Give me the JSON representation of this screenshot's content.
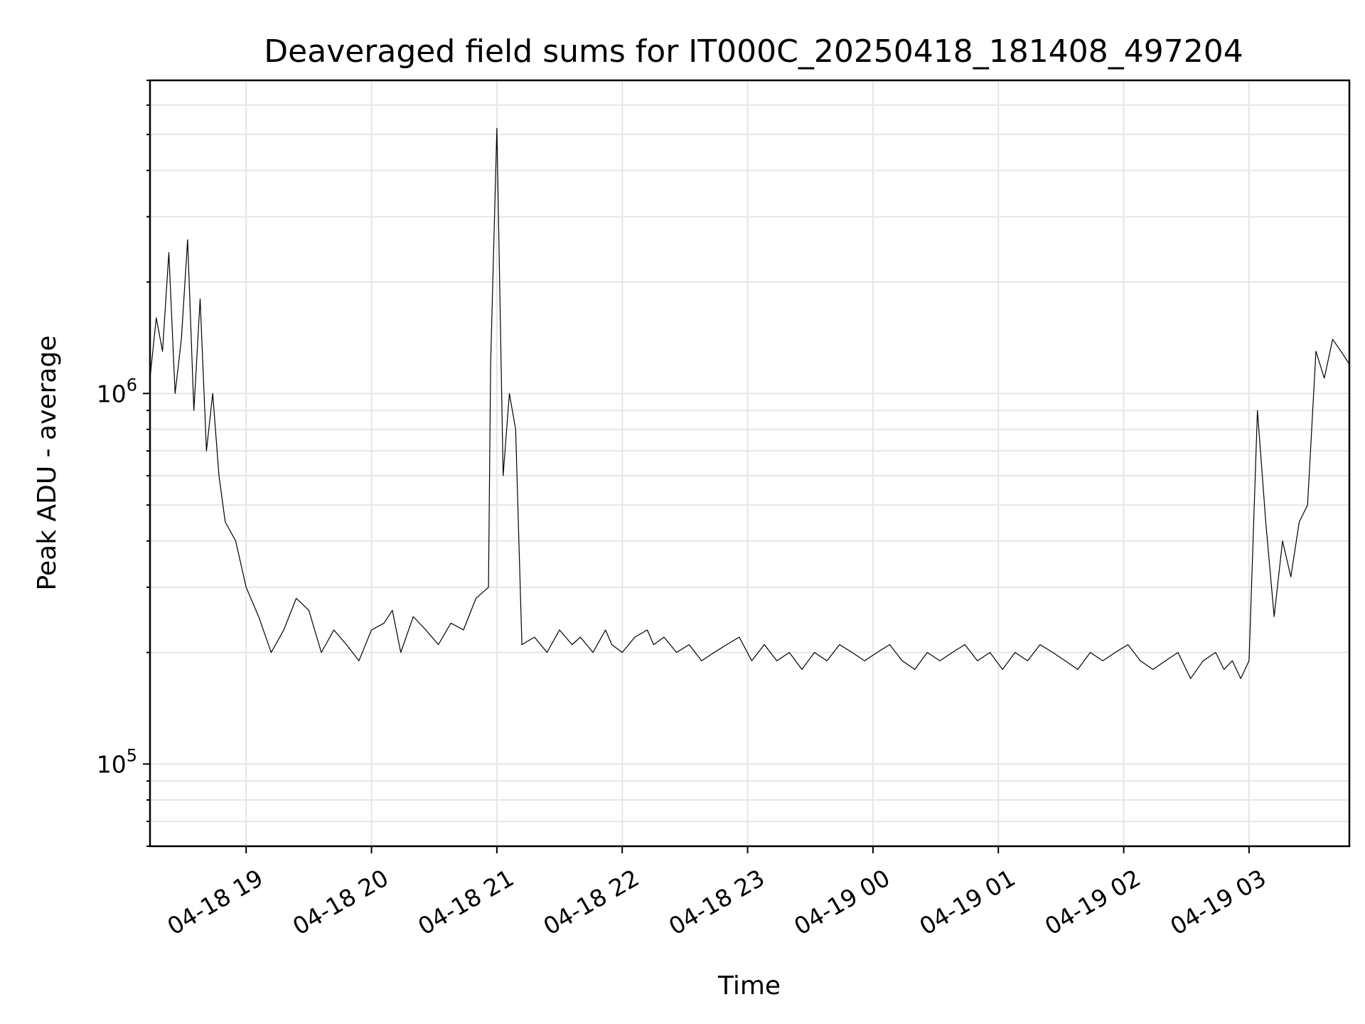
{
  "chart_data": {
    "type": "line",
    "title": "Deaveraged field sums for IT000C_20250418_181408_497204",
    "xlabel": "Time",
    "ylabel": "Peak ADU - average",
    "yscale": "log",
    "ylim": [
      60000,
      7000000
    ],
    "xlim": [
      "04-18 18:14",
      "04-19 03:48"
    ],
    "grid": true,
    "x_tick_labels": [
      "04-18 19",
      "04-18 20",
      "04-18 21",
      "04-18 22",
      "04-18 23",
      "04-19 00",
      "04-19 01",
      "04-19 02",
      "04-19 03"
    ],
    "y_tick_labels": [
      {
        "base": "10",
        "exp": "5"
      },
      {
        "base": "10",
        "exp": "6"
      }
    ],
    "series": [
      {
        "color": "#000000",
        "x": [
          "04-18 18:14",
          "04-18 18:17",
          "04-18 18:20",
          "04-18 18:23",
          "04-18 18:26",
          "04-18 18:29",
          "04-18 18:32",
          "04-18 18:35",
          "04-18 18:38",
          "04-18 18:41",
          "04-18 18:44",
          "04-18 18:47",
          "04-18 18:50",
          "04-18 18:55",
          "04-18 19:00",
          "04-18 19:06",
          "04-18 19:12",
          "04-18 19:18",
          "04-18 19:24",
          "04-18 19:30",
          "04-18 19:36",
          "04-18 19:42",
          "04-18 19:48",
          "04-18 19:54",
          "04-18 20:00",
          "04-18 20:06",
          "04-18 20:10",
          "04-18 20:14",
          "04-18 20:20",
          "04-18 20:26",
          "04-18 20:32",
          "04-18 20:38",
          "04-18 20:44",
          "04-18 20:50",
          "04-18 20:56",
          "04-18 20:57",
          "04-18 21:00",
          "04-18 21:03",
          "04-18 21:06",
          "04-18 21:09",
          "04-18 21:12",
          "04-18 21:18",
          "04-18 21:24",
          "04-18 21:30",
          "04-18 21:36",
          "04-18 21:40",
          "04-18 21:46",
          "04-18 21:52",
          "04-18 21:55",
          "04-18 22:00",
          "04-18 22:06",
          "04-18 22:12",
          "04-18 22:15",
          "04-18 22:20",
          "04-18 22:26",
          "04-18 22:32",
          "04-18 22:38",
          "04-18 22:44",
          "04-18 22:50",
          "04-18 22:56",
          "04-18 23:02",
          "04-18 23:08",
          "04-18 23:14",
          "04-18 23:20",
          "04-18 23:26",
          "04-18 23:32",
          "04-18 23:38",
          "04-18 23:44",
          "04-18 23:50",
          "04-18 23:56",
          "04-19 00:02",
          "04-19 00:08",
          "04-19 00:14",
          "04-19 00:20",
          "04-19 00:26",
          "04-19 00:32",
          "04-19 00:38",
          "04-19 00:44",
          "04-19 00:50",
          "04-19 00:56",
          "04-19 01:02",
          "04-19 01:08",
          "04-19 01:14",
          "04-19 01:20",
          "04-19 01:26",
          "04-19 01:32",
          "04-19 01:38",
          "04-19 01:44",
          "04-19 01:50",
          "04-19 01:56",
          "04-19 02:02",
          "04-19 02:08",
          "04-19 02:14",
          "04-19 02:20",
          "04-19 02:26",
          "04-19 02:32",
          "04-19 02:38",
          "04-19 02:44",
          "04-19 02:48",
          "04-19 02:52",
          "04-19 02:56",
          "04-19 03:00",
          "04-19 03:04",
          "04-19 03:08",
          "04-19 03:12",
          "04-19 03:16",
          "04-19 03:20",
          "04-19 03:24",
          "04-19 03:28",
          "04-19 03:32",
          "04-19 03:36",
          "04-19 03:40",
          "04-19 03:44",
          "04-19 03:48"
        ],
        "y": [
          1100000,
          1600000,
          1300000,
          2400000,
          1000000,
          1400000,
          2600000,
          900000,
          1800000,
          700000,
          1000000,
          600000,
          450000,
          400000,
          300000,
          250000,
          200000,
          230000,
          280000,
          260000,
          200000,
          230000,
          210000,
          190000,
          230000,
          240000,
          260000,
          200000,
          250000,
          230000,
          210000,
          240000,
          230000,
          280000,
          300000,
          1200000,
          5200000,
          600000,
          1000000,
          800000,
          210000,
          220000,
          200000,
          230000,
          210000,
          220000,
          200000,
          230000,
          210000,
          200000,
          220000,
          230000,
          210000,
          220000,
          200000,
          210000,
          190000,
          200000,
          210000,
          220000,
          190000,
          210000,
          190000,
          200000,
          180000,
          200000,
          190000,
          210000,
          200000,
          190000,
          200000,
          210000,
          190000,
          180000,
          200000,
          190000,
          200000,
          210000,
          190000,
          200000,
          180000,
          200000,
          190000,
          210000,
          200000,
          190000,
          180000,
          200000,
          190000,
          200000,
          210000,
          190000,
          180000,
          190000,
          200000,
          170000,
          190000,
          200000,
          180000,
          190000,
          170000,
          190000,
          900000,
          450000,
          250000,
          400000,
          320000,
          450000,
          500000,
          1300000,
          1100000,
          1400000,
          1300000,
          1200000
        ]
      }
    ]
  }
}
